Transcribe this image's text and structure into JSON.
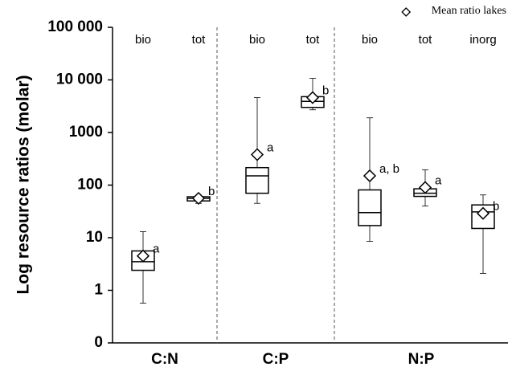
{
  "chart_data": {
    "type": "box",
    "y_label": "Log resource ratios (molar)",
    "legend": {
      "marker": "diamond",
      "label": "Mean ratio lakes",
      "position": "top-right"
    },
    "log_scale": true,
    "ylim": [
      0.1,
      100000
    ],
    "yticks": [
      {
        "value": 0.1,
        "label": "0"
      },
      1,
      10,
      100,
      1000,
      {
        "value": 10000,
        "label": "10 000"
      },
      {
        "value": 100000,
        "label": "100 000"
      }
    ],
    "color": "#000000",
    "groups": [
      {
        "name": "C:N",
        "boxes": [
          {
            "label": "bio",
            "low": 0.57,
            "q1": 2.4,
            "median": 3.5,
            "q3": 5.6,
            "high": 13,
            "mean": 4.5,
            "letter": "a"
          },
          {
            "label": "tot",
            "low": 45,
            "q1": 50,
            "median": 56,
            "q3": 60,
            "high": 62,
            "mean": 56,
            "letter": "b"
          }
        ]
      },
      {
        "name": "C:P",
        "boxes": [
          {
            "label": "bio",
            "low": 45,
            "q1": 70,
            "median": 150,
            "q3": 215,
            "high": 4600,
            "mean": 380,
            "letter": "a"
          },
          {
            "label": "tot",
            "low": 2700,
            "q1": 3000,
            "median": 3900,
            "q3": 4800,
            "high": 10700,
            "mean": 4600,
            "letter": "b"
          }
        ]
      },
      {
        "name": "N:P",
        "boxes": [
          {
            "label": "bio",
            "low": 8.5,
            "q1": 17,
            "median": 30,
            "q3": 81,
            "high": 1900,
            "mean": 150,
            "letter": "a, b"
          },
          {
            "label": "tot",
            "low": 40,
            "q1": 61,
            "median": 70,
            "q3": 85,
            "high": 195,
            "mean": 90,
            "letter": "a"
          },
          {
            "label": "inorg",
            "low": 2.1,
            "q1": 15,
            "median": 31,
            "q3": 42,
            "high": 65,
            "mean": 29,
            "letter": "b"
          }
        ]
      }
    ]
  }
}
